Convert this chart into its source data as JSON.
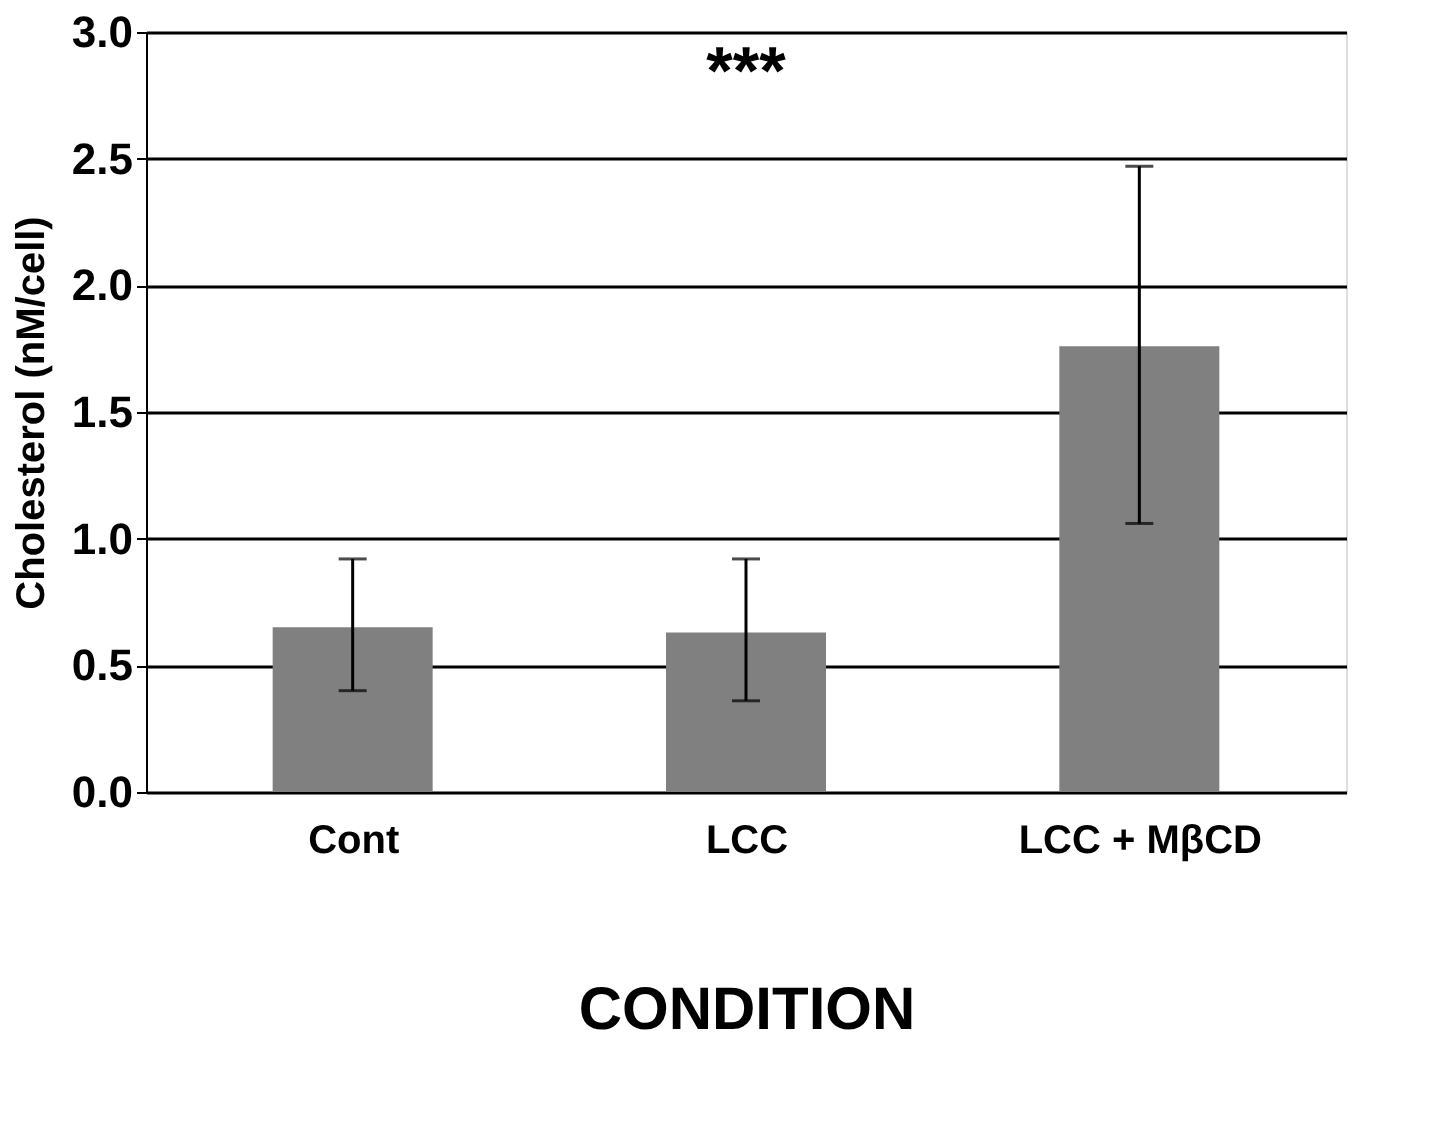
{
  "chart_data": {
    "type": "bar",
    "xlabel": "CONDITION",
    "ylabel": "Cholesterol (nM/cell)",
    "categories": [
      "Cont",
      "LCC",
      "LCC + MβCD"
    ],
    "values": [
      0.65,
      0.63,
      1.76
    ],
    "errors": [
      [
        0.4,
        0.92
      ],
      [
        0.36,
        0.92
      ],
      [
        1.06,
        2.47
      ]
    ],
    "color": "#808080",
    "ylim": [
      0,
      3.0
    ],
    "yticks": [
      {
        "value": 0,
        "label": "0.0"
      },
      0.5,
      {
        "value": 1,
        "label": "1.0"
      },
      1.5,
      {
        "value": 2,
        "label": "2.0"
      },
      2.5,
      {
        "value": 3,
        "label": "3.0"
      }
    ],
    "grid": "y",
    "annotations": [
      "***"
    ]
  }
}
